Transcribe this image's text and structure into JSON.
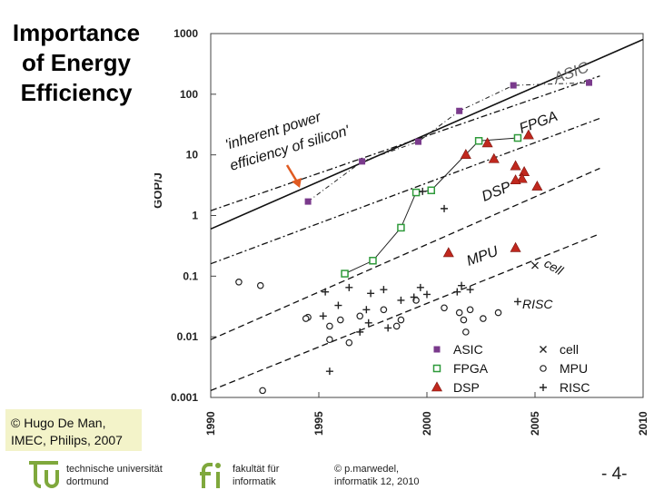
{
  "slide": {
    "title_lines": [
      "Importance",
      "of Energy",
      "Efficiency"
    ],
    "credit_lines": [
      "© Hugo De Man,",
      "IMEC, Philips, 2007"
    ],
    "page_number": "- 4-"
  },
  "footer": {
    "university_lines": [
      "technische universität",
      "dortmund"
    ],
    "faculty_lines": [
      "fakultät für",
      "informatik"
    ],
    "author_lines": [
      "© p.marwedel,",
      "informatik 12,  2010"
    ]
  },
  "colors": {
    "asic": "#7a3a8c",
    "fpga": "#2e9a3a",
    "dsp": "#c0281e",
    "arrow": "#e05a20",
    "tu_logo": "#7fa83c"
  },
  "chart_data": {
    "type": "scatter",
    "ylabel": "GOP/J",
    "yscale": "log",
    "ylim": [
      0.001,
      1000
    ],
    "xlim": [
      1990,
      2010
    ],
    "yticks": [
      "1000",
      "100",
      "10",
      "1",
      "0.1",
      "0.01",
      "0.001"
    ],
    "xticks": [
      "1990",
      "1995",
      "2000",
      "2005",
      "2010"
    ],
    "legend": [
      "ASIC",
      "FPGA",
      "DSP",
      "cell",
      "MPU",
      "RISC"
    ],
    "annotation_lines": [
      "'inherent power",
      "efficiency of silicon'"
    ],
    "region_labels": [
      "ASIC",
      "FPGA",
      "DSP",
      "MPU",
      "cell",
      "RISC"
    ],
    "series": [
      {
        "name": "ASIC",
        "x": [
          1994.5,
          1997,
          1999.6,
          2001.5,
          2004,
          2007.5
        ],
        "y": [
          1.7,
          7.8,
          16.5,
          53,
          140,
          155
        ]
      },
      {
        "name": "FPGA",
        "x": [
          1996.2,
          1997.5,
          1998.8,
          1999.5,
          2000.2,
          2002.4,
          2004.2
        ],
        "y": [
          0.11,
          0.18,
          0.63,
          2.4,
          2.6,
          17,
          19
        ]
      },
      {
        "name": "DSP",
        "x": [
          2002.8,
          2004.7,
          2001.8,
          2003.1,
          2004.1,
          2004.5,
          2004.4,
          2004.1,
          2005.1,
          2001,
          2004.1
        ],
        "y": [
          15.5,
          21,
          10,
          8.5,
          6.5,
          5.2,
          4,
          3.8,
          3.0,
          0.24,
          0.29
        ]
      },
      {
        "name": "MPU",
        "x": [
          1991.3,
          1992.3,
          1994.5,
          1995.5,
          1994.4,
          1996.4,
          1996.9,
          1998,
          1998.6,
          1998.8,
          1999.5,
          2000.8,
          2001.5,
          2001.7,
          2002,
          2002.6,
          2003.3,
          2001.8,
          1995.5,
          1996,
          1992.4
        ],
        "y": [
          0.08,
          0.07,
          0.021,
          0.009,
          0.02,
          0.008,
          0.022,
          0.028,
          0.015,
          0.019,
          0.04,
          0.03,
          0.025,
          0.019,
          0.028,
          0.02,
          0.025,
          0.012,
          0.015,
          0.019,
          0.0013
        ]
      },
      {
        "name": "RISC",
        "x": [
          1995.3,
          1996.4,
          1997.4,
          1998,
          1999.7,
          2000,
          2001.4,
          2001.6,
          2002,
          2004.2,
          1999.4,
          1998.8,
          1995.9,
          1995.2,
          1997.2,
          1997.3,
          1998.2,
          1996.9,
          1999.8,
          2000.8,
          1995.5
        ],
        "y": [
          0.055,
          0.065,
          0.052,
          0.06,
          0.065,
          0.05,
          0.055,
          0.07,
          0.06,
          0.038,
          0.045,
          0.04,
          0.033,
          0.022,
          0.028,
          0.017,
          0.014,
          0.012,
          2.5,
          1.3,
          0.0027
        ]
      },
      {
        "name": "cell",
        "x": [
          2005
        ],
        "y": [
          0.15
        ]
      }
    ],
    "trend_lines": [
      {
        "name": "inherent",
        "x": [
          1990,
          2010
        ],
        "y": [
          0.6,
          800
        ],
        "style": "solid"
      },
      {
        "name": "asic-trend",
        "x": [
          1990,
          2008
        ],
        "y": [
          1.2,
          200
        ],
        "style": "dash-dot"
      },
      {
        "name": "fpga-trend",
        "x": [
          1990,
          2008
        ],
        "y": [
          0.16,
          40
        ],
        "style": "dash-dot"
      },
      {
        "name": "dsp-trend",
        "x": [
          1990,
          2008
        ],
        "y": [
          0.009,
          6
        ],
        "style": "dashed"
      },
      {
        "name": "mpu-trend",
        "x": [
          1990,
          2008
        ],
        "y": [
          0.0013,
          0.5
        ],
        "style": "dashed"
      }
    ]
  }
}
